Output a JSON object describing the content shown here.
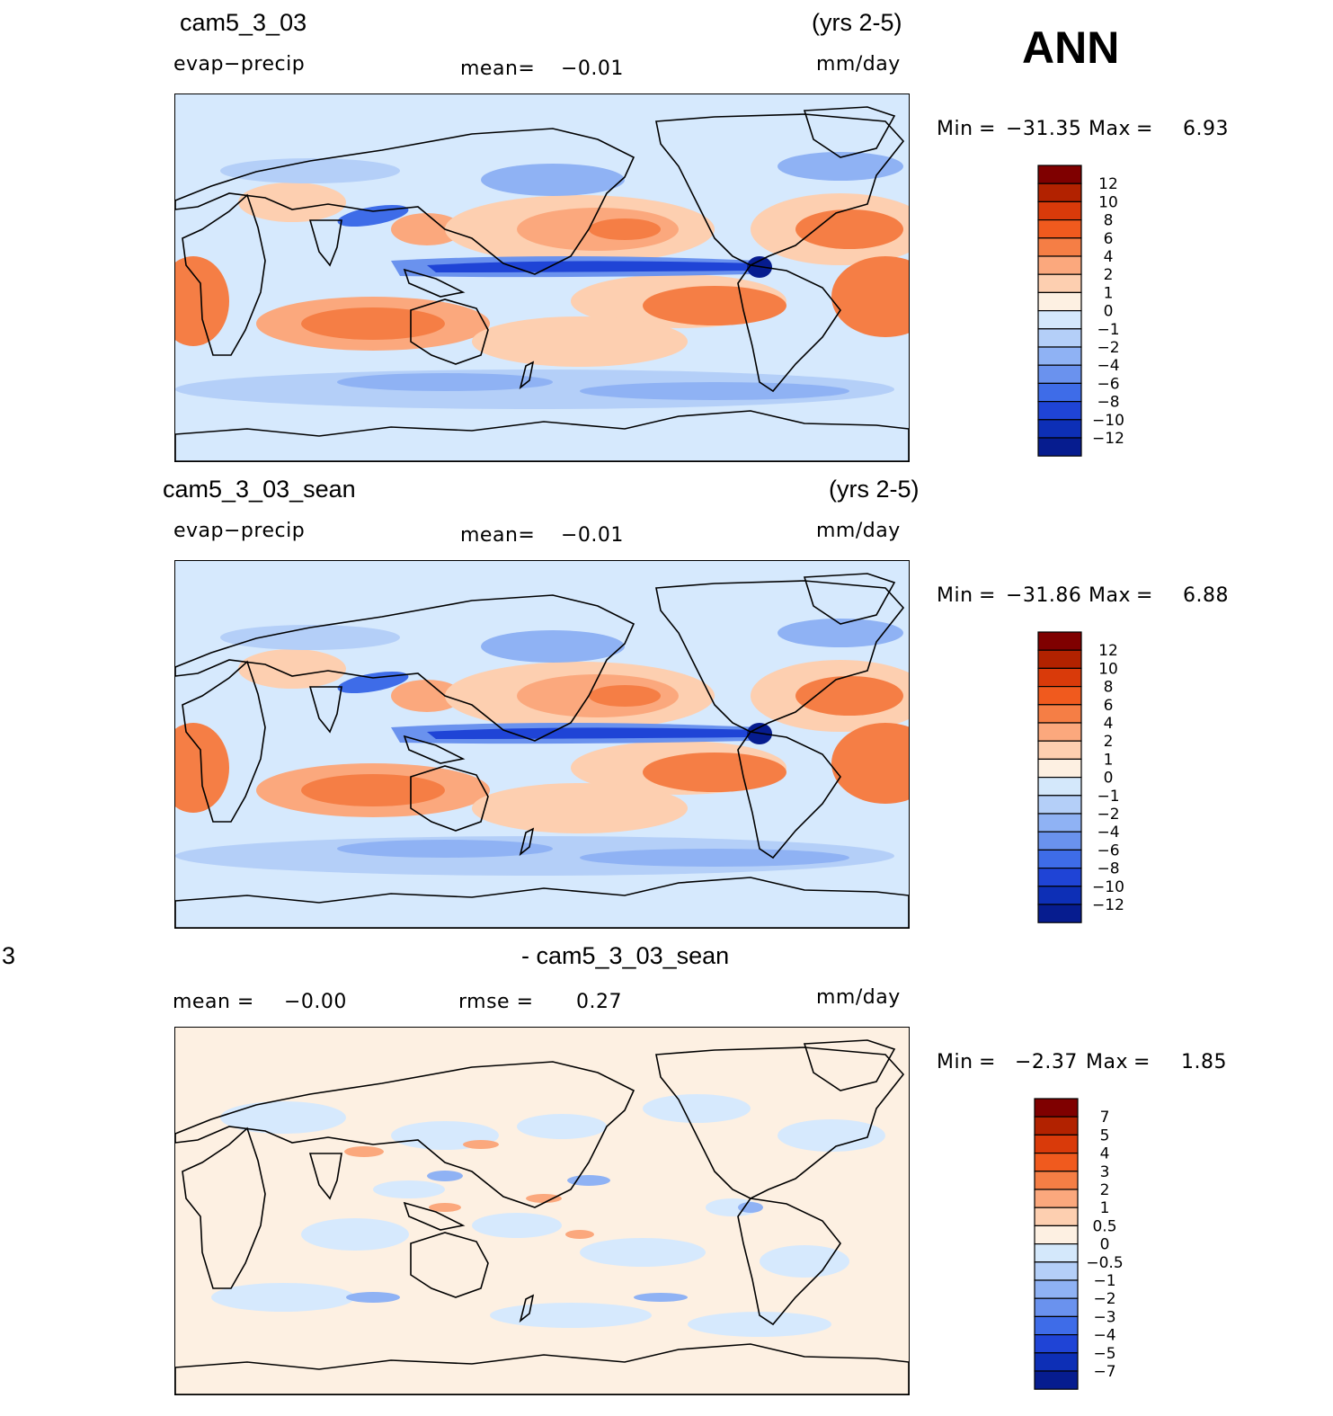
{
  "season": "ANN",
  "panels": [
    {
      "case": "cam5_3_03",
      "years": "(yrs 2-5)",
      "variable": "evap−precip",
      "mean_label": "mean=",
      "mean_value": "−0.01",
      "units": "mm/day",
      "min_label": "Min",
      "min_value": "−31.35",
      "max_label": "Max",
      "max_value": "6.93",
      "colorbar_labels": [
        "12",
        "10",
        "8",
        "6",
        "4",
        "2",
        "1",
        "0",
        "−1",
        "−2",
        "−4",
        "−6",
        "−8",
        "−10",
        "−12"
      ]
    },
    {
      "case": "cam5_3_03_sean",
      "years": "(yrs 2-5)",
      "variable": "evap−precip",
      "mean_label": "mean=",
      "mean_value": "−0.01",
      "units": "mm/day",
      "min_label": "Min",
      "min_value": "−31.86",
      "max_label": "Max",
      "max_value": "6.88",
      "colorbar_labels": [
        "12",
        "10",
        "8",
        "6",
        "4",
        "2",
        "1",
        "0",
        "−1",
        "−2",
        "−4",
        "−6",
        "−8",
        "−10",
        "−12"
      ]
    },
    {
      "case_left_fragment": "3",
      "case": "- cam5_3_03_sean",
      "mean_label": "mean =",
      "mean_value": "−0.00",
      "rmse_label": "rmse =",
      "rmse_value": "0.27",
      "units": "mm/day",
      "min_label": "Min",
      "min_value": "−2.37",
      "max_label": "Max",
      "max_value": "1.85",
      "colorbar_labels": [
        "7",
        "5",
        "4",
        "3",
        "2",
        "1",
        "0.5",
        "0",
        "−0.5",
        "−1",
        "−2",
        "−3",
        "−4",
        "−5",
        "−7"
      ]
    }
  ],
  "colors": {
    "levels": [
      "#7f0000",
      "#b22200",
      "#d93a0a",
      "#f05a1e",
      "#f57e45",
      "#fba87d",
      "#fdcfb0",
      "#fdf0e2",
      "#d4e8fb",
      "#b4cff8",
      "#8fb2f4",
      "#6a92ee",
      "#3e6ce8",
      "#1f44d6",
      "#0d2fb6",
      "#061c8f"
    ],
    "water_zero": "#d6e9fd",
    "land_line": "#000000"
  },
  "chart_data": [
    {
      "type": "heatmap",
      "title": "cam5_3_03",
      "variable": "evap−precip",
      "units": "mm/day",
      "min": -31.35,
      "max": 6.93,
      "mean": -0.01,
      "contour_levels": [
        -12,
        -10,
        -8,
        -6,
        -4,
        -2,
        -1,
        0,
        1,
        2,
        4,
        6,
        8,
        10,
        12
      ]
    },
    {
      "type": "heatmap",
      "title": "cam5_3_03_sean",
      "variable": "evap−precip",
      "units": "mm/day",
      "min": -31.86,
      "max": 6.88,
      "mean": -0.01,
      "contour_levels": [
        -12,
        -10,
        -8,
        -6,
        -4,
        -2,
        -1,
        0,
        1,
        2,
        4,
        6,
        8,
        10,
        12
      ]
    },
    {
      "type": "heatmap",
      "title": "- cam5_3_03_sean",
      "units": "mm/day",
      "min": -2.37,
      "max": 1.85,
      "mean": -0.0,
      "rmse": 0.27,
      "contour_levels": [
        -7,
        -5,
        -4,
        -3,
        -2,
        -1,
        -0.5,
        0,
        0.5,
        1,
        2,
        3,
        4,
        5,
        7
      ]
    }
  ]
}
